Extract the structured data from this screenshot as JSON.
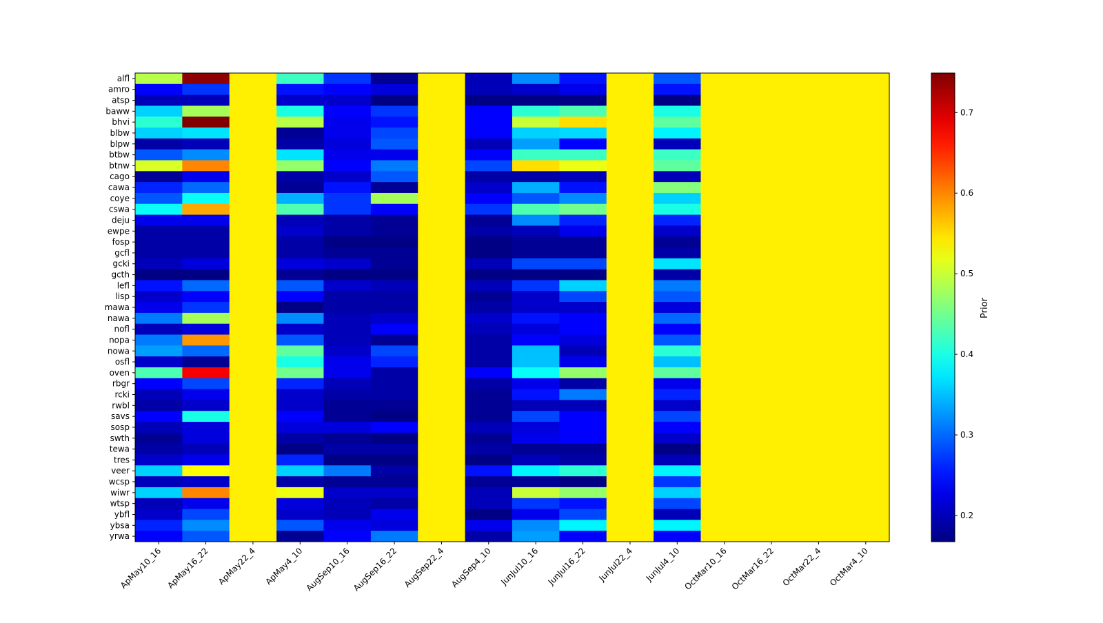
{
  "chart_data": {
    "type": "heatmap",
    "title": "",
    "xlabel": "",
    "ylabel": "",
    "colormap": "jet",
    "colorbar": {
      "label": "Prior",
      "range": [
        0.1675,
        0.749
      ],
      "ticks": [
        0.2,
        0.3,
        0.4,
        0.5,
        0.6,
        0.7
      ],
      "tick_labels": [
        "0.2",
        "0.3",
        "0.4",
        "0.5",
        "0.6",
        "0.7"
      ]
    },
    "x": [
      "ApMay10_16",
      "ApMay16_22",
      "ApMay22_4",
      "ApMay4_10",
      "AugSep10_16",
      "AugSep16_22",
      "AugSep22_4",
      "AugSep4_10",
      "JunJul10_16",
      "JunJul16_22",
      "JunJul22_4",
      "JunJul4_10",
      "OctMar10_16",
      "OctMar16_22",
      "OctMar22_4",
      "OctMar4_10"
    ],
    "y": [
      "alfl",
      "amro",
      "atsp",
      "baww",
      "bhvi",
      "blbw",
      "blpw",
      "btbw",
      "btnw",
      "cago",
      "cawa",
      "coye",
      "cswa",
      "deju",
      "ewpe",
      "fosp",
      "gcfl",
      "gcki",
      "gcth",
      "lefl",
      "lisp",
      "mawa",
      "nawa",
      "nofl",
      "nopa",
      "nowa",
      "osfl",
      "oven",
      "rbgr",
      "rcki",
      "rwbl",
      "savs",
      "sosp",
      "swth",
      "tewa",
      "tres",
      "veer",
      "wcsp",
      "wiwr",
      "wtsp",
      "ybfl",
      "ybsa",
      "yrwa"
    ],
    "values": [
      [
        0.49,
        0.74,
        0.54,
        0.42,
        0.27,
        0.18,
        0.54,
        0.2,
        0.32,
        0.25,
        0.54,
        0.29,
        0.54,
        0.54,
        0.54,
        0.54
      ],
      [
        0.24,
        0.27,
        0.54,
        0.25,
        0.24,
        0.22,
        0.54,
        0.2,
        0.21,
        0.23,
        0.54,
        0.25,
        0.54,
        0.54,
        0.54,
        0.54
      ],
      [
        0.2,
        0.2,
        0.54,
        0.21,
        0.21,
        0.17,
        0.54,
        0.17,
        0.17,
        0.17,
        0.54,
        0.17,
        0.54,
        0.54,
        0.54,
        0.54
      ],
      [
        0.36,
        0.48,
        0.54,
        0.4,
        0.24,
        0.27,
        0.54,
        0.24,
        0.41,
        0.43,
        0.54,
        0.4,
        0.54,
        0.54,
        0.54,
        0.54
      ],
      [
        0.41,
        0.75,
        0.54,
        0.49,
        0.23,
        0.25,
        0.54,
        0.24,
        0.5,
        0.55,
        0.54,
        0.44,
        0.54,
        0.54,
        0.54,
        0.54
      ],
      [
        0.36,
        0.37,
        0.54,
        0.18,
        0.23,
        0.28,
        0.54,
        0.24,
        0.36,
        0.365,
        0.54,
        0.38,
        0.54,
        0.54,
        0.54,
        0.54
      ],
      [
        0.19,
        0.2,
        0.54,
        0.19,
        0.22,
        0.29,
        0.54,
        0.2,
        0.33,
        0.24,
        0.54,
        0.2,
        0.54,
        0.54,
        0.54,
        0.54
      ],
      [
        0.29,
        0.32,
        0.54,
        0.37,
        0.23,
        0.23,
        0.54,
        0.24,
        0.42,
        0.42,
        0.54,
        0.42,
        0.54,
        0.54,
        0.54,
        0.54
      ],
      [
        0.51,
        0.6,
        0.54,
        0.47,
        0.24,
        0.31,
        0.54,
        0.28,
        0.55,
        0.52,
        0.54,
        0.44,
        0.54,
        0.54,
        0.54,
        0.54
      ],
      [
        0.18,
        0.23,
        0.54,
        0.19,
        0.21,
        0.29,
        0.54,
        0.19,
        0.19,
        0.2,
        0.54,
        0.2,
        0.54,
        0.54,
        0.54,
        0.54
      ],
      [
        0.26,
        0.3,
        0.54,
        0.18,
        0.25,
        0.18,
        0.54,
        0.21,
        0.34,
        0.25,
        0.54,
        0.46,
        0.54,
        0.54,
        0.54,
        0.54
      ],
      [
        0.29,
        0.39,
        0.54,
        0.34,
        0.27,
        0.48,
        0.54,
        0.24,
        0.29,
        0.32,
        0.54,
        0.36,
        0.54,
        0.54,
        0.54,
        0.54
      ],
      [
        0.39,
        0.58,
        0.54,
        0.43,
        0.27,
        0.24,
        0.54,
        0.27,
        0.43,
        0.45,
        0.54,
        0.4,
        0.54,
        0.54,
        0.54,
        0.54
      ],
      [
        0.23,
        0.23,
        0.54,
        0.2,
        0.19,
        0.18,
        0.54,
        0.18,
        0.32,
        0.26,
        0.54,
        0.26,
        0.54,
        0.54,
        0.54,
        0.54
      ],
      [
        0.19,
        0.19,
        0.54,
        0.21,
        0.19,
        0.18,
        0.54,
        0.19,
        0.2,
        0.23,
        0.54,
        0.21,
        0.54,
        0.54,
        0.54,
        0.54
      ],
      [
        0.19,
        0.19,
        0.54,
        0.19,
        0.17,
        0.17,
        0.54,
        0.17,
        0.18,
        0.18,
        0.54,
        0.18,
        0.54,
        0.54,
        0.54,
        0.54
      ],
      [
        0.19,
        0.19,
        0.54,
        0.19,
        0.18,
        0.18,
        0.54,
        0.17,
        0.18,
        0.18,
        0.54,
        0.19,
        0.54,
        0.54,
        0.54,
        0.54
      ],
      [
        0.2,
        0.22,
        0.54,
        0.22,
        0.21,
        0.18,
        0.54,
        0.2,
        0.28,
        0.28,
        0.54,
        0.37,
        0.54,
        0.54,
        0.54,
        0.54
      ],
      [
        0.17,
        0.17,
        0.54,
        0.18,
        0.17,
        0.17,
        0.54,
        0.17,
        0.17,
        0.17,
        0.54,
        0.19,
        0.54,
        0.54,
        0.54,
        0.54
      ],
      [
        0.25,
        0.3,
        0.54,
        0.29,
        0.21,
        0.2,
        0.54,
        0.2,
        0.27,
        0.36,
        0.54,
        0.31,
        0.54,
        0.54,
        0.54,
        0.54
      ],
      [
        0.21,
        0.24,
        0.54,
        0.24,
        0.19,
        0.19,
        0.54,
        0.18,
        0.21,
        0.28,
        0.54,
        0.29,
        0.54,
        0.54,
        0.54,
        0.54
      ],
      [
        0.23,
        0.27,
        0.54,
        0.17,
        0.19,
        0.19,
        0.54,
        0.19,
        0.21,
        0.21,
        0.54,
        0.22,
        0.54,
        0.54,
        0.54,
        0.54
      ],
      [
        0.31,
        0.48,
        0.54,
        0.32,
        0.2,
        0.21,
        0.54,
        0.21,
        0.25,
        0.24,
        0.54,
        0.3,
        0.54,
        0.54,
        0.54,
        0.54
      ],
      [
        0.2,
        0.22,
        0.54,
        0.21,
        0.2,
        0.24,
        0.54,
        0.2,
        0.22,
        0.24,
        0.54,
        0.24,
        0.54,
        0.54,
        0.54,
        0.54
      ],
      [
        0.31,
        0.59,
        0.54,
        0.29,
        0.2,
        0.18,
        0.54,
        0.19,
        0.24,
        0.22,
        0.54,
        0.29,
        0.54,
        0.54,
        0.54,
        0.54
      ],
      [
        0.33,
        0.3,
        0.54,
        0.44,
        0.21,
        0.28,
        0.54,
        0.19,
        0.35,
        0.2,
        0.54,
        0.41,
        0.54,
        0.54,
        0.54,
        0.54
      ],
      [
        0.21,
        0.18,
        0.54,
        0.4,
        0.23,
        0.26,
        0.54,
        0.19,
        0.35,
        0.23,
        0.54,
        0.35,
        0.54,
        0.54,
        0.54,
        0.54
      ],
      [
        0.43,
        0.68,
        0.54,
        0.45,
        0.23,
        0.19,
        0.54,
        0.24,
        0.39,
        0.47,
        0.54,
        0.44,
        0.54,
        0.54,
        0.54,
        0.54
      ],
      [
        0.24,
        0.28,
        0.54,
        0.26,
        0.2,
        0.19,
        0.54,
        0.19,
        0.23,
        0.19,
        0.54,
        0.23,
        0.54,
        0.54,
        0.54,
        0.54
      ],
      [
        0.2,
        0.23,
        0.54,
        0.21,
        0.19,
        0.19,
        0.54,
        0.18,
        0.25,
        0.31,
        0.54,
        0.26,
        0.54,
        0.54,
        0.54,
        0.54
      ],
      [
        0.19,
        0.21,
        0.54,
        0.21,
        0.18,
        0.18,
        0.54,
        0.18,
        0.2,
        0.2,
        0.54,
        0.21,
        0.54,
        0.54,
        0.54,
        0.54
      ],
      [
        0.24,
        0.4,
        0.54,
        0.24,
        0.18,
        0.17,
        0.54,
        0.18,
        0.28,
        0.24,
        0.54,
        0.28,
        0.54,
        0.54,
        0.54,
        0.54
      ],
      [
        0.2,
        0.22,
        0.54,
        0.22,
        0.22,
        0.24,
        0.54,
        0.2,
        0.22,
        0.24,
        0.54,
        0.24,
        0.54,
        0.54,
        0.54,
        0.54
      ],
      [
        0.18,
        0.22,
        0.54,
        0.19,
        0.18,
        0.17,
        0.54,
        0.18,
        0.23,
        0.24,
        0.54,
        0.21,
        0.54,
        0.54,
        0.54,
        0.54
      ],
      [
        0.19,
        0.2,
        0.54,
        0.17,
        0.19,
        0.19,
        0.54,
        0.19,
        0.18,
        0.18,
        0.54,
        0.17,
        0.54,
        0.54,
        0.54,
        0.54
      ],
      [
        0.21,
        0.23,
        0.54,
        0.26,
        0.17,
        0.17,
        0.54,
        0.17,
        0.2,
        0.19,
        0.54,
        0.2,
        0.54,
        0.54,
        0.54,
        0.54
      ],
      [
        0.36,
        0.53,
        0.54,
        0.36,
        0.31,
        0.19,
        0.54,
        0.25,
        0.38,
        0.41,
        0.54,
        0.38,
        0.54,
        0.54,
        0.54,
        0.54
      ],
      [
        0.2,
        0.21,
        0.54,
        0.19,
        0.18,
        0.18,
        0.54,
        0.18,
        0.18,
        0.17,
        0.54,
        0.27,
        0.54,
        0.54,
        0.54,
        0.54
      ],
      [
        0.36,
        0.6,
        0.54,
        0.52,
        0.21,
        0.21,
        0.54,
        0.2,
        0.5,
        0.47,
        0.54,
        0.36,
        0.54,
        0.54,
        0.54,
        0.54
      ],
      [
        0.2,
        0.23,
        0.54,
        0.22,
        0.2,
        0.19,
        0.54,
        0.2,
        0.27,
        0.25,
        0.54,
        0.28,
        0.54,
        0.54,
        0.54,
        0.54
      ],
      [
        0.21,
        0.28,
        0.54,
        0.21,
        0.2,
        0.23,
        0.54,
        0.17,
        0.23,
        0.28,
        0.54,
        0.2,
        0.54,
        0.54,
        0.54,
        0.54
      ],
      [
        0.26,
        0.32,
        0.54,
        0.29,
        0.23,
        0.22,
        0.54,
        0.23,
        0.32,
        0.38,
        0.54,
        0.38,
        0.54,
        0.54,
        0.54,
        0.54
      ],
      [
        0.24,
        0.29,
        0.54,
        0.18,
        0.24,
        0.31,
        0.54,
        0.19,
        0.33,
        0.24,
        0.54,
        0.24,
        0.54,
        0.54,
        0.54,
        0.54
      ]
    ]
  }
}
